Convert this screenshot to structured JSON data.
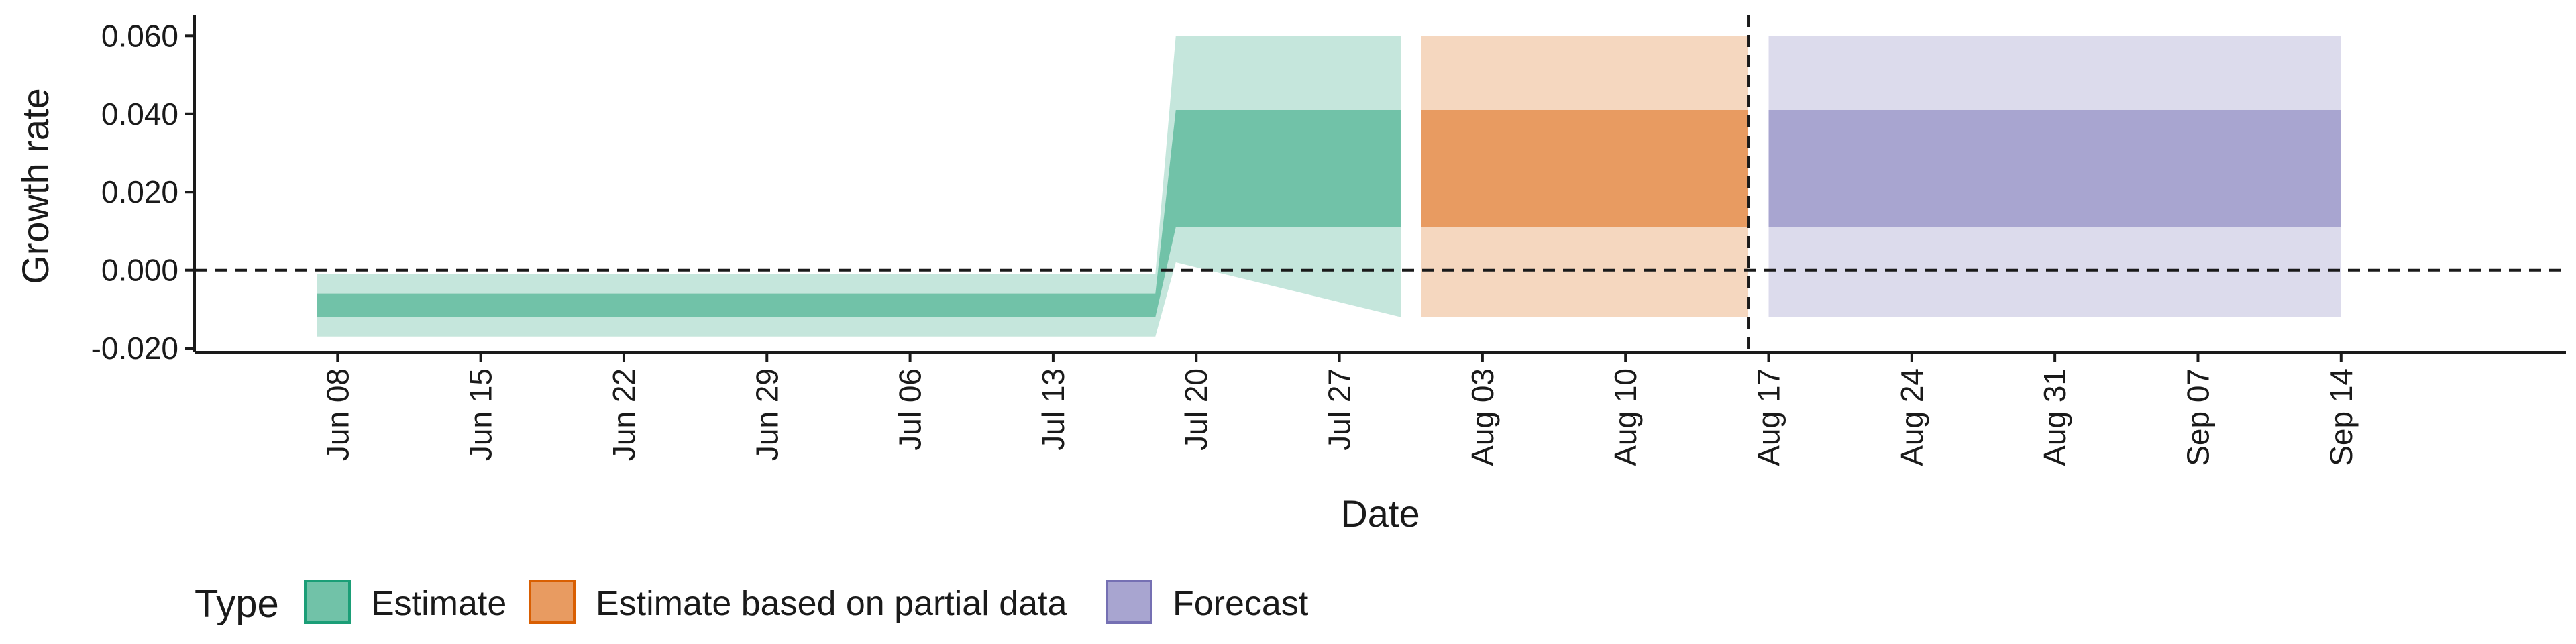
{
  "chart_data": {
    "type": "area",
    "xlabel": "Date",
    "ylabel": "Growth rate",
    "x_ticks": [
      "Jun 08",
      "Jun 15",
      "Jun 22",
      "Jun 29",
      "Jul 06",
      "Jul 13",
      "Jul 20",
      "Jul 27",
      "Aug 03",
      "Aug 10",
      "Aug 17",
      "Aug 24",
      "Aug 31",
      "Sep 07",
      "Sep 14"
    ],
    "x_tick_dates": [
      "2020-06-08",
      "2020-06-15",
      "2020-06-22",
      "2020-06-29",
      "2020-07-06",
      "2020-07-13",
      "2020-07-20",
      "2020-07-27",
      "2020-08-03",
      "2020-08-10",
      "2020-08-17",
      "2020-08-24",
      "2020-08-31",
      "2020-09-07",
      "2020-09-14"
    ],
    "y_ticks": [
      "-0.020",
      "0.000",
      "0.020",
      "0.040",
      "0.060"
    ],
    "y_tick_values": [
      -0.02,
      0.0,
      0.02,
      0.04,
      0.06
    ],
    "xlim": [
      "2020-06-01",
      "2020-09-25"
    ],
    "ylim": [
      -0.021,
      0.064
    ],
    "grid": false,
    "hline": 0.0,
    "vline": "2020-08-16",
    "legend": {
      "title": "Type",
      "position": "bottom-left",
      "entries": [
        {
          "label": "Estimate",
          "fill": "#71c2a8",
          "stroke": "#1b9e77"
        },
        {
          "label": "Estimate based on partial data",
          "fill": "#e89b61",
          "stroke": "#d95f02"
        },
        {
          "label": "Forecast",
          "fill": "#a8a5d0",
          "stroke": "#7570b3"
        }
      ]
    },
    "series": [
      {
        "name": "Estimate",
        "inner_color": "#71c2a8",
        "outer_color": "#c5e6dc",
        "x": [
          "2020-06-07",
          "2020-07-18",
          "2020-07-19",
          "2020-07-30"
        ],
        "lower_90": [
          -0.017,
          -0.017,
          0.002,
          -0.012
        ],
        "lower_50": [
          -0.012,
          -0.012,
          0.011,
          0.011
        ],
        "upper_50": [
          -0.006,
          -0.006,
          0.041,
          0.041
        ],
        "upper_90": [
          -0.001,
          -0.001,
          0.06,
          0.06
        ]
      },
      {
        "name": "Estimate based on partial data",
        "inner_color": "#e89b61",
        "outer_color": "#f5d7bf",
        "x": [
          "2020-07-31",
          "2020-08-16"
        ],
        "lower_90": [
          -0.012,
          -0.012
        ],
        "lower_50": [
          0.011,
          0.011
        ],
        "upper_50": [
          0.041,
          0.041
        ],
        "upper_90": [
          0.06,
          0.06
        ]
      },
      {
        "name": "Forecast",
        "inner_color": "#a8a5d0",
        "outer_color": "#dcdbec",
        "x": [
          "2020-08-17",
          "2020-09-14"
        ],
        "lower_90": [
          -0.012,
          -0.012
        ],
        "lower_50": [
          0.011,
          0.011
        ],
        "upper_50": [
          0.041,
          0.041
        ],
        "upper_90": [
          0.06,
          0.06
        ]
      }
    ]
  }
}
